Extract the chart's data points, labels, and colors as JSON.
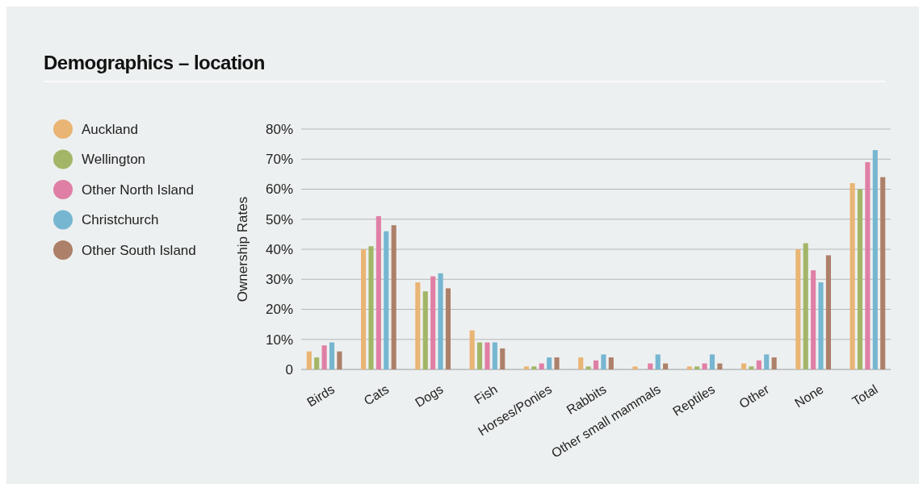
{
  "chart_data": {
    "type": "bar",
    "title": "Demographics – location",
    "ylabel": "Ownership Rates",
    "categories": [
      "Birds",
      "Cats",
      "Dogs",
      "Fish",
      "Horses/Ponies",
      "Rabbits",
      "Other small mammals",
      "Reptiles",
      "Other",
      "None",
      "Total"
    ],
    "series": [
      {
        "name": "Auckland",
        "color": "#e9b574",
        "values": [
          6,
          40,
          29,
          13,
          1,
          4,
          1,
          1,
          2,
          40,
          62
        ]
      },
      {
        "name": "Wellington",
        "color": "#a3b667",
        "values": [
          4,
          41,
          26,
          9,
          1,
          1,
          0,
          1,
          1,
          42,
          60
        ]
      },
      {
        "name": "Other North Island",
        "color": "#e07fa5",
        "values": [
          8,
          51,
          31,
          9,
          2,
          3,
          2,
          2,
          3,
          33,
          69
        ]
      },
      {
        "name": "Christchurch",
        "color": "#76b6d1",
        "values": [
          9,
          46,
          32,
          9,
          4,
          5,
          5,
          5,
          5,
          29,
          73
        ]
      },
      {
        "name": "Other South Island",
        "color": "#ad806a",
        "values": [
          6,
          48,
          27,
          7,
          4,
          4,
          2,
          2,
          4,
          38,
          64
        ]
      }
    ],
    "ylim": [
      0,
      80
    ],
    "yticks": [
      0,
      {
        "value": 10,
        "label": "10%"
      },
      {
        "value": 20,
        "label": "20%"
      },
      {
        "value": 30,
        "label": "30%"
      },
      {
        "value": 40,
        "label": "40%"
      },
      {
        "value": 50,
        "label": "50%"
      },
      {
        "value": 60,
        "label": "60%"
      },
      {
        "value": 70,
        "label": "70%"
      },
      {
        "value": 80,
        "label": "80%"
      }
    ],
    "grid": "y",
    "legend": "top left"
  }
}
